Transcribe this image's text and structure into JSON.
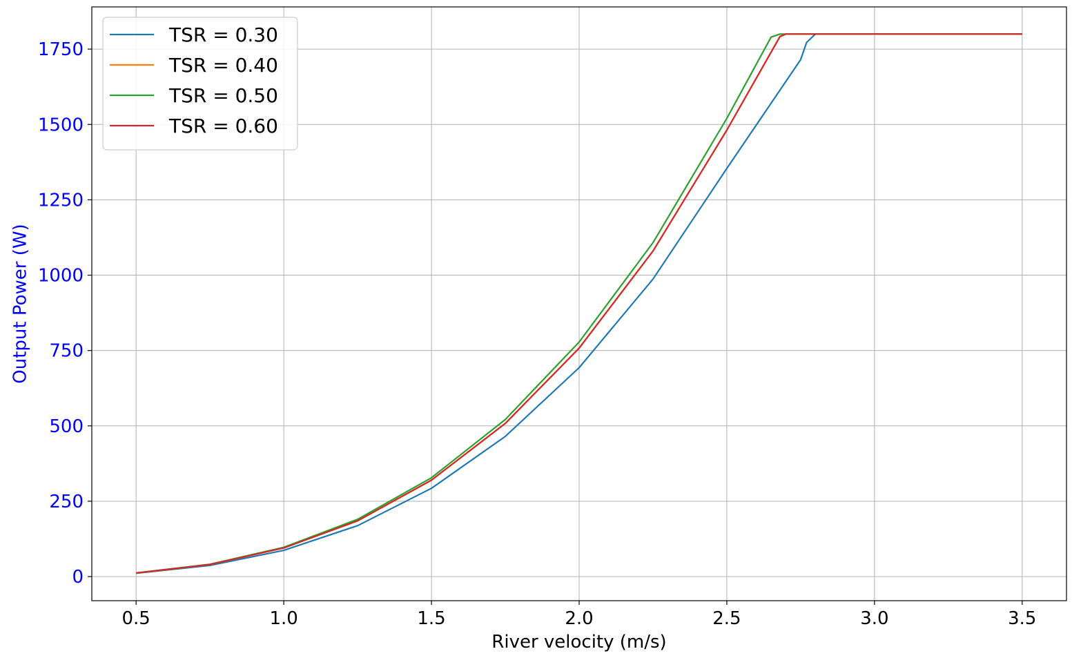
{
  "chart_data": {
    "type": "line",
    "xlabel": "River velocity (m/s)",
    "ylabel": "Output Power (W)",
    "xlim": [
      0.35,
      3.65
    ],
    "ylim": [
      -80,
      1890
    ],
    "xticks": [
      0.5,
      1.0,
      1.5,
      2.0,
      2.5,
      3.0,
      3.5
    ],
    "xtick_labels": [
      "0.5",
      "1.0",
      "1.5",
      "2.0",
      "2.5",
      "3.0",
      "3.5"
    ],
    "yticks": [
      0,
      250,
      500,
      750,
      1000,
      1250,
      1500,
      1750
    ],
    "ytick_labels": [
      "0",
      "250",
      "500",
      "750",
      "1000",
      "1250",
      "1500",
      "1750"
    ],
    "grid": true,
    "legend_position": "top-left",
    "ylabel_color": "#0000ff",
    "ytick_color": "#0000ff",
    "series": [
      {
        "name": "TSR = 0.30",
        "color": "#1f77b4",
        "x": [
          0.5,
          0.75,
          1.0,
          1.25,
          1.5,
          1.75,
          2.0,
          2.25,
          2.5,
          2.75,
          2.77,
          2.8,
          3.0,
          3.25,
          3.5
        ],
        "y": [
          11,
          37,
          87,
          169,
          293,
          465,
          693,
          987,
          1354,
          1715,
          1772,
          1800,
          1800,
          1800,
          1800
        ]
      },
      {
        "name": "TSR = 0.40",
        "color": "#ff7f0e",
        "x": [
          0.5,
          0.75,
          1.0,
          1.25,
          1.5,
          1.75,
          2.0,
          2.25,
          2.5,
          2.68,
          2.7,
          3.0,
          3.25,
          3.5
        ],
        "y": [
          12,
          40,
          95,
          185,
          320,
          508,
          758,
          1080,
          1481,
          1792,
          1800,
          1800,
          1800,
          1800
        ]
      },
      {
        "name": "TSR = 0.50",
        "color": "#2ca02c",
        "x": [
          0.5,
          0.75,
          1.0,
          1.25,
          1.5,
          1.75,
          2.0,
          2.25,
          2.5,
          2.65,
          2.68,
          3.0,
          3.25,
          3.5
        ],
        "y": [
          12,
          41,
          97,
          190,
          328,
          521,
          778,
          1108,
          1520,
          1790,
          1800,
          1800,
          1800,
          1800
        ]
      },
      {
        "name": "TSR = 0.60",
        "color": "#d62728",
        "x": [
          0.5,
          0.75,
          1.0,
          1.25,
          1.5,
          1.75,
          2.0,
          2.25,
          2.5,
          2.68,
          2.7,
          3.0,
          3.25,
          3.5
        ],
        "y": [
          12,
          40,
          95,
          185,
          320,
          508,
          758,
          1080,
          1481,
          1792,
          1800,
          1800,
          1800,
          1800
        ]
      }
    ]
  }
}
